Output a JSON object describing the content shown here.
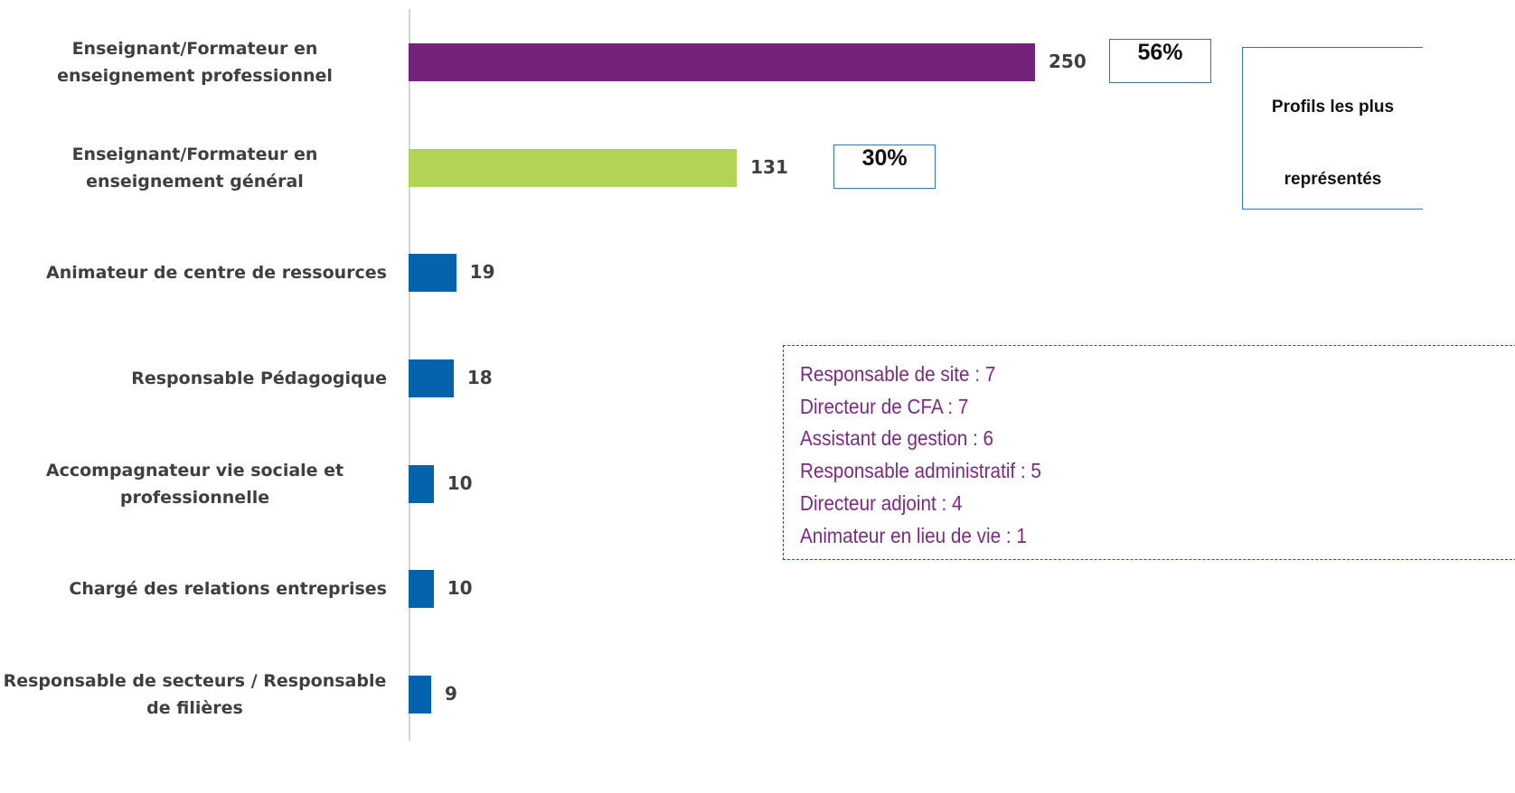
{
  "chart_data": {
    "type": "bar",
    "orientation": "horizontal",
    "categories": [
      "Enseignant/Formateur en enseignement professionnel",
      "Enseignant/Formateur en enseignement général",
      "Animateur de centre de ressources",
      "Responsable Pédagogique",
      "Accompagnateur vie sociale et professionnelle",
      "Chargé des relations entreprises",
      "Responsable de secteurs / Responsable de filières"
    ],
    "values": [
      250,
      131,
      19,
      18,
      10,
      10,
      9
    ],
    "colors": [
      "#74237a",
      "#b3d357",
      "#0563ae",
      "#0563ae",
      "#0563ae",
      "#0563ae",
      "#0563ae"
    ],
    "highlights": {
      "values": [
        56,
        30
      ],
      "value_labels": [
        "56%",
        "30%"
      ]
    },
    "highlight_title": "Profils les plus représentés",
    "other_profiles": [
      "Responsable de site : 7",
      "Directeur de CFA : 7",
      "Assistant de gestion : 6",
      "Responsable administratif : 5",
      "Directeur adjoint : 4",
      "Animateur en lieu de vie : 1"
    ]
  }
}
